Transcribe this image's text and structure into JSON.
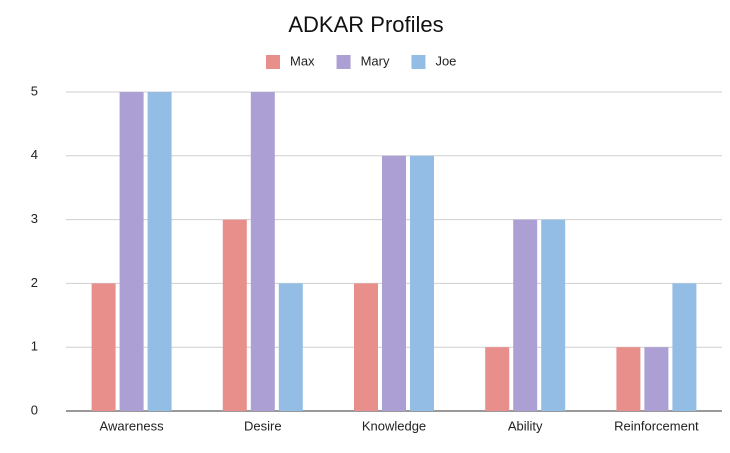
{
  "chart_data": {
    "type": "bar",
    "title": "ADKAR Profiles",
    "categories": [
      "Awareness",
      "Desire",
      "Knowledge",
      "Ability",
      "Reinforcement"
    ],
    "series": [
      {
        "name": "Max",
        "color": "#e88f8b",
        "values": [
          2,
          3,
          2,
          1,
          1
        ]
      },
      {
        "name": "Mary",
        "color": "#ab9fd3",
        "values": [
          5,
          5,
          4,
          3,
          1
        ]
      },
      {
        "name": "Joe",
        "color": "#93bde4",
        "values": [
          5,
          2,
          4,
          3,
          2
        ]
      }
    ],
    "ylim": [
      0,
      5
    ],
    "yticks": [
      0,
      1,
      2,
      3,
      4,
      5
    ],
    "grid": true,
    "legend": "top"
  }
}
